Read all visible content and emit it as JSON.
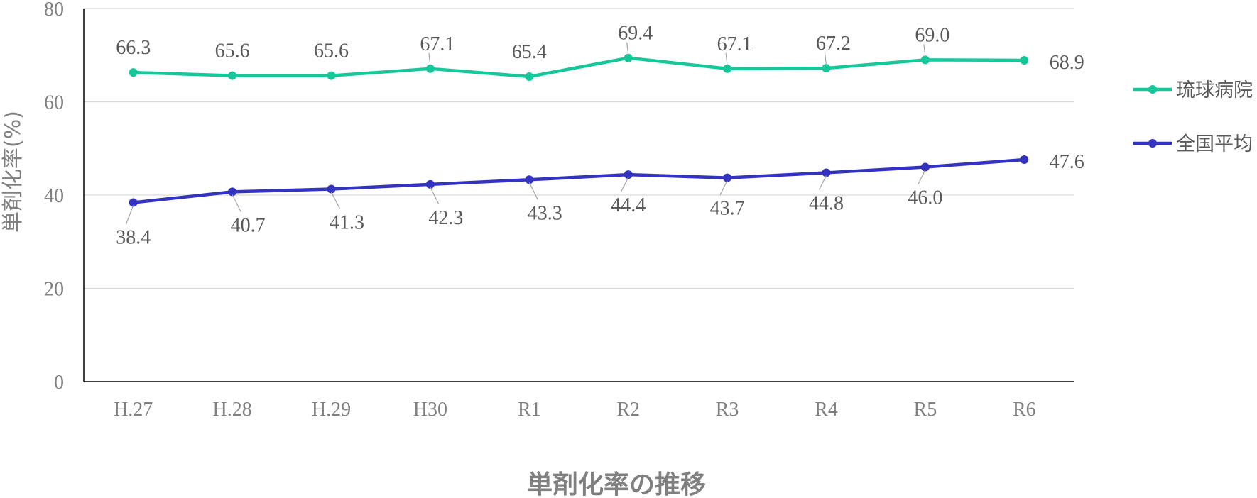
{
  "chart_data": {
    "type": "line",
    "title": "",
    "xlabel": "単剤化率の推移",
    "ylabel": "単剤化率(%)",
    "ylim": [
      0,
      80
    ],
    "yticks": [
      "0",
      "20",
      "40",
      "60",
      "80"
    ],
    "grid": true,
    "legend_position": "right",
    "categories": [
      "H.27",
      "H.28",
      "H.29",
      "H30",
      "R1",
      "R2",
      "R3",
      "R4",
      "R5",
      "R6"
    ],
    "series": [
      {
        "name": "琉球病院",
        "color": "#16C79A",
        "values": [
          66.3,
          65.6,
          65.6,
          67.1,
          65.4,
          69.4,
          67.1,
          67.2,
          69.0,
          68.9
        ],
        "labels": [
          "66.3",
          "65.6",
          "65.6",
          "67.1",
          "65.4",
          "69.4",
          "67.1",
          "67.2",
          "69.0",
          "68.9"
        ]
      },
      {
        "name": "全国平均",
        "color": "#3333C0",
        "values": [
          38.4,
          40.7,
          41.3,
          42.3,
          43.3,
          44.4,
          43.7,
          44.8,
          46.0,
          47.6
        ],
        "labels": [
          "38.4",
          "40.7",
          "41.3",
          "42.3",
          "43.3",
          "44.4",
          "43.7",
          "44.8",
          "46.0",
          "47.6"
        ]
      }
    ]
  }
}
